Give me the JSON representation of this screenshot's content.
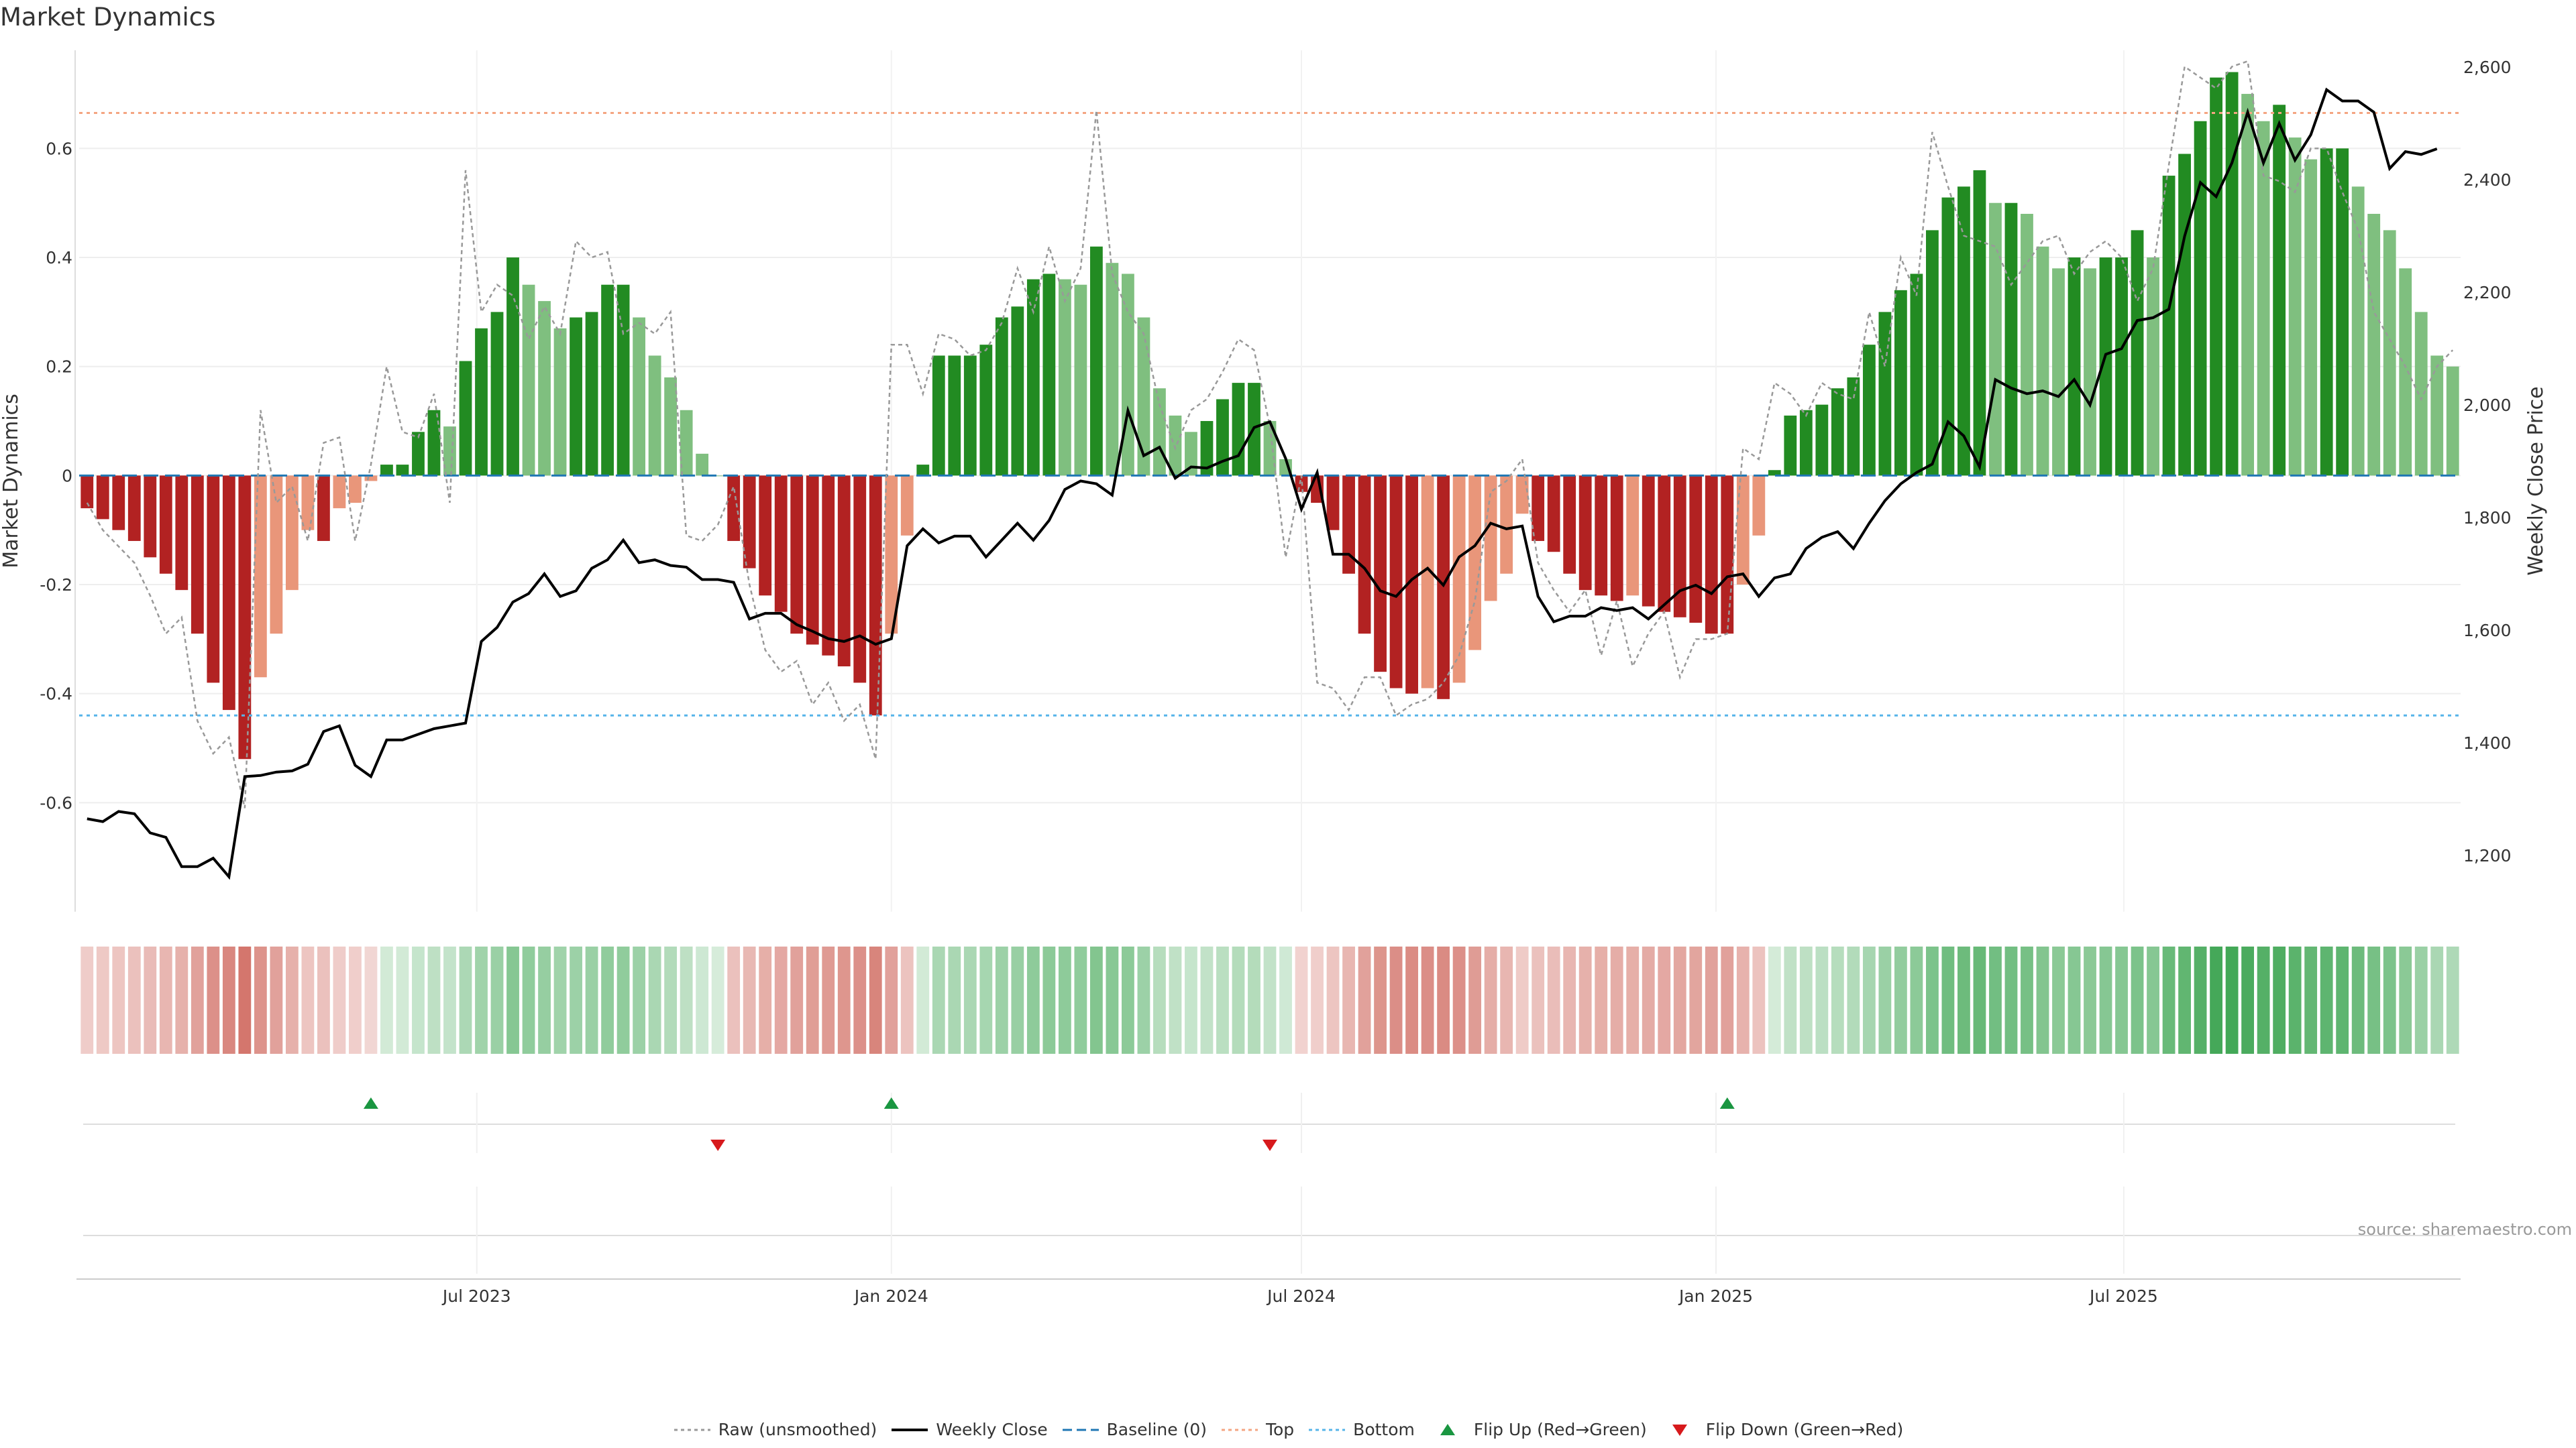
{
  "chart_data": {
    "type": "bar",
    "title": "Market Dynamics",
    "ylabel": "Market Dynamics",
    "y2label": "Weekly Close Price",
    "ylim": [
      -0.8,
      0.78
    ],
    "y2lim": [
      1100,
      2630
    ],
    "yticks": [
      -0.6,
      -0.4,
      -0.2,
      0,
      0.2,
      0.4,
      0.6
    ],
    "y2ticks": [
      1200,
      1400,
      1600,
      1800,
      2000,
      2200,
      2400,
      2600
    ],
    "xaxis_start": "2023-01-09",
    "xticks": [
      {
        "label": "Jul 2023",
        "date": "2023-07-01"
      },
      {
        "label": "Jan 2024",
        "date": "2024-01-01"
      },
      {
        "label": "Jul 2024",
        "date": "2024-07-01"
      },
      {
        "label": "Jan 2025",
        "date": "2025-01-01"
      },
      {
        "label": "Jul 2025",
        "date": "2025-07-01"
      }
    ],
    "top_level": 0.665,
    "bottom_level": -0.44,
    "baseline": 0,
    "series": [
      {
        "name": "Market Dynamics",
        "role": "bars",
        "values": [
          -0.06,
          -0.08,
          -0.1,
          -0.12,
          -0.15,
          -0.18,
          -0.21,
          -0.29,
          -0.38,
          -0.43,
          -0.52,
          -0.37,
          -0.29,
          -0.21,
          -0.1,
          -0.12,
          -0.06,
          -0.05,
          -0.01,
          0.02,
          0.02,
          0.08,
          0.12,
          0.09,
          0.21,
          0.27,
          0.3,
          0.4,
          0.35,
          0.32,
          0.27,
          0.29,
          0.3,
          0.35,
          0.35,
          0.29,
          0.22,
          0.18,
          0.12,
          0.04,
          0.0,
          -0.12,
          -0.17,
          -0.22,
          -0.25,
          -0.29,
          -0.31,
          -0.33,
          -0.35,
          -0.38,
          -0.44,
          -0.29,
          -0.11,
          0.02,
          0.22,
          0.22,
          0.22,
          0.24,
          0.29,
          0.31,
          0.36,
          0.37,
          0.36,
          0.35,
          0.42,
          0.39,
          0.37,
          0.29,
          0.16,
          0.11,
          0.08,
          0.1,
          0.14,
          0.17,
          0.17,
          0.1,
          0.03,
          -0.03,
          -0.05,
          -0.1,
          -0.18,
          -0.29,
          -0.36,
          -0.39,
          -0.4,
          -0.39,
          -0.41,
          -0.38,
          -0.32,
          -0.23,
          -0.18,
          -0.07,
          -0.12,
          -0.14,
          -0.18,
          -0.21,
          -0.22,
          -0.23,
          -0.22,
          -0.24,
          -0.25,
          -0.26,
          -0.27,
          -0.29,
          -0.29,
          -0.2,
          -0.11,
          0.01,
          0.11,
          0.12,
          0.13,
          0.16,
          0.18,
          0.24,
          0.3,
          0.34,
          0.37,
          0.45,
          0.51,
          0.53,
          0.56,
          0.5,
          0.5,
          0.48,
          0.42,
          0.38,
          0.4,
          0.38,
          0.4,
          0.4,
          0.45,
          0.4,
          0.55,
          0.59,
          0.65,
          0.73,
          0.74,
          0.7,
          0.65,
          0.68,
          0.62,
          0.58,
          0.6,
          0.6,
          0.53,
          0.48,
          0.45,
          0.38,
          0.3,
          0.22,
          0.2
        ]
      },
      {
        "name": "Raw (unsmoothed)",
        "values": [
          -0.05,
          -0.1,
          -0.13,
          -0.16,
          -0.22,
          -0.29,
          -0.26,
          -0.45,
          -0.51,
          -0.48,
          -0.61,
          0.12,
          -0.05,
          -0.02,
          -0.12,
          0.06,
          0.07,
          -0.12,
          0.02,
          0.2,
          0.08,
          0.07,
          0.15,
          -0.05,
          0.56,
          0.3,
          0.35,
          0.33,
          0.25,
          0.31,
          0.26,
          0.43,
          0.4,
          0.41,
          0.26,
          0.28,
          0.26,
          0.3,
          -0.11,
          -0.12,
          -0.09,
          -0.02,
          -0.2,
          -0.32,
          -0.36,
          -0.34,
          -0.42,
          -0.38,
          -0.45,
          -0.42,
          -0.52,
          0.24,
          0.24,
          0.15,
          0.26,
          0.25,
          0.22,
          0.23,
          0.28,
          0.38,
          0.3,
          0.42,
          0.32,
          0.38,
          0.67,
          0.37,
          0.3,
          0.26,
          0.13,
          0.05,
          0.12,
          0.14,
          0.19,
          0.25,
          0.23,
          0.09,
          -0.15,
          0.0,
          -0.38,
          -0.39,
          -0.43,
          -0.37,
          -0.37,
          -0.44,
          -0.42,
          -0.41,
          -0.38,
          -0.33,
          -0.23,
          -0.03,
          -0.01,
          0.03,
          -0.16,
          -0.21,
          -0.25,
          -0.21,
          -0.33,
          -0.23,
          -0.35,
          -0.29,
          -0.25,
          -0.37,
          -0.3,
          -0.3,
          -0.29,
          0.05,
          0.03,
          0.17,
          0.15,
          0.11,
          0.17,
          0.15,
          0.14,
          0.3,
          0.2,
          0.4,
          0.33,
          0.63,
          0.53,
          0.44,
          0.43,
          0.42,
          0.35,
          0.39,
          0.43,
          0.44,
          0.37,
          0.41,
          0.43,
          0.4,
          0.32,
          0.38,
          0.57,
          0.75,
          0.73,
          0.71,
          0.75,
          0.76,
          0.55,
          0.54,
          0.52,
          0.6,
          0.6,
          0.52,
          0.45,
          0.3,
          0.25,
          0.2,
          0.14,
          0.2,
          0.23
        ]
      },
      {
        "name": "Weekly Close",
        "axis": "right",
        "values": [
          1265,
          1260,
          1278,
          1274,
          1240,
          1232,
          1180,
          1180,
          1195,
          1162,
          1340,
          1342,
          1348,
          1350,
          1362,
          1420,
          1430,
          1360,
          1340,
          1405,
          1405,
          1415,
          1425,
          1430,
          1435,
          1580,
          1605,
          1650,
          1665,
          1700,
          1660,
          1670,
          1710,
          1725,
          1760,
          1720,
          1725,
          1715,
          1712,
          1690,
          1690,
          1685,
          1620,
          1630,
          1630,
          1610,
          1598,
          1585,
          1580,
          1590,
          1575,
          1585,
          1750,
          1780,
          1755,
          1767,
          1767,
          1730,
          1760,
          1790,
          1760,
          1795,
          1850,
          1865,
          1860,
          1840,
          1990,
          1910,
          1925,
          1870,
          1890,
          1888,
          1900,
          1910,
          1960,
          1970,
          1905,
          1815,
          1880,
          1735,
          1735,
          1710,
          1670,
          1660,
          1690,
          1710,
          1680,
          1730,
          1750,
          1790,
          1780,
          1785,
          1660,
          1615,
          1625,
          1625,
          1640,
          1635,
          1640,
          1620,
          1645,
          1670,
          1680,
          1665,
          1695,
          1700,
          1660,
          1693,
          1700,
          1745,
          1765,
          1775,
          1745,
          1790,
          1830,
          1860,
          1880,
          1895,
          1970,
          1945,
          1890,
          2045,
          2030,
          2020,
          2025,
          2015,
          2045,
          2000,
          2090,
          2100,
          2150,
          2155,
          2170,
          2300,
          2395,
          2370,
          2430,
          2520,
          2430,
          2500,
          2435,
          2480,
          2560,
          2540,
          2540,
          2520,
          2420,
          2450,
          2445,
          2455
        ]
      },
      {
        "name": "Baseline (0)",
        "value": 0
      },
      {
        "name": "Top",
        "value": 0.665
      },
      {
        "name": "Bottom",
        "value": -0.44
      }
    ],
    "flip_events": [
      {
        "type": "Flip Up (Red→Green)",
        "index": 18
      },
      {
        "type": "Flip Down (Green→Red)",
        "index": 40
      },
      {
        "type": "Flip Up (Red→Green)",
        "index": 51
      },
      {
        "type": "Flip Down (Green→Red)",
        "index": 75
      },
      {
        "type": "Flip Up (Red→Green)",
        "index": 104
      }
    ],
    "colors": {
      "red_strong": "#b22222",
      "red_light": "#e9967a",
      "green_strong": "#228b22",
      "green_light": "#7fbf7f",
      "raw_line": "#999999",
      "close_line": "#000000",
      "baseline": "#1f77b4",
      "top": "#f4a582",
      "bottom": "#56b4e9",
      "flip_up": "#1a9641",
      "flip_down": "#d7191c"
    }
  },
  "source_text": "source: sharemaestro.com",
  "legend": [
    {
      "label": "Raw (unsmoothed)",
      "icon": "dotted-line-icon",
      "color": "#999999"
    },
    {
      "label": "Weekly Close",
      "icon": "solid-line-icon",
      "color": "#000000"
    },
    {
      "label": "Baseline (0)",
      "icon": "dashed-line-icon",
      "color": "#1f77b4"
    },
    {
      "label": "Top",
      "icon": "dotted-line-icon",
      "color": "#f4a582"
    },
    {
      "label": "Bottom",
      "icon": "dotted-line-icon",
      "color": "#56b4e9"
    },
    {
      "label": "Flip Up (Red→Green)",
      "icon": "triangle-up-icon",
      "color": "#1a9641"
    },
    {
      "label": "Flip Down (Green→Red)",
      "icon": "triangle-down-icon",
      "color": "#d7191c"
    }
  ]
}
